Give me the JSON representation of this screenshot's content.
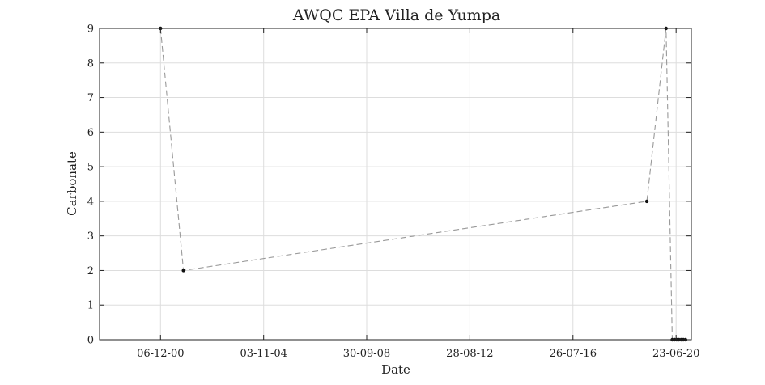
{
  "chart_data": {
    "type": "line",
    "title": "AWQC EPA Villa de Yumpa",
    "xlabel": "Date",
    "ylabel": "Carbonate",
    "ylim": [
      0,
      9
    ],
    "yticks": [
      0,
      1,
      2,
      3,
      4,
      5,
      6,
      7,
      8,
      9
    ],
    "xlim": [
      "1998-08-15",
      "2021-01-20"
    ],
    "xticks": [
      {
        "date": "2000-12-06",
        "label": "06-12-00"
      },
      {
        "date": "2004-11-03",
        "label": "03-11-04"
      },
      {
        "date": "2008-09-30",
        "label": "30-09-08"
      },
      {
        "date": "2012-08-28",
        "label": "28-08-12"
      },
      {
        "date": "2016-07-26",
        "label": "26-07-16"
      },
      {
        "date": "2020-06-23",
        "label": "23-06-20"
      }
    ],
    "grid": true,
    "series": [
      {
        "color": "#999999",
        "marker_color": "#111111",
        "line_style": "dashed",
        "points": [
          {
            "x": "2000-12-06",
            "y": 9
          },
          {
            "x": "2001-10-20",
            "y": 2
          },
          {
            "x": "2019-05-15",
            "y": 4
          },
          {
            "x": "2020-02-05",
            "y": 9
          },
          {
            "x": "2020-05-01",
            "y": 0
          },
          {
            "x": "2020-06-01",
            "y": 0
          },
          {
            "x": "2020-07-01",
            "y": 0
          },
          {
            "x": "2020-08-01",
            "y": 0
          },
          {
            "x": "2020-09-01",
            "y": 0
          },
          {
            "x": "2020-10-01",
            "y": 0
          },
          {
            "x": "2020-11-01",
            "y": 0
          }
        ]
      }
    ]
  }
}
